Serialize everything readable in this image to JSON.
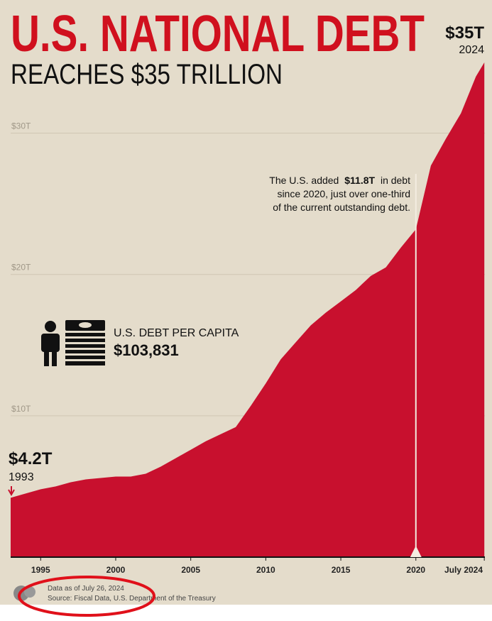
{
  "chart_data": {
    "type": "area",
    "title": "U.S. NATIONAL DEBT",
    "subtitle": "REACHES $35 TRILLION",
    "x": [
      1993,
      1994,
      1995,
      1996,
      1997,
      1998,
      1999,
      2000,
      2001,
      2002,
      2003,
      2004,
      2005,
      2006,
      2007,
      2008,
      2009,
      2010,
      2011,
      2012,
      2013,
      2014,
      2015,
      2016,
      2017,
      2018,
      2019,
      2020,
      2021,
      2022,
      2023,
      2024,
      2024.56
    ],
    "values": [
      4.2,
      4.5,
      4.8,
      5.0,
      5.3,
      5.5,
      5.6,
      5.7,
      5.7,
      5.9,
      6.4,
      7.0,
      7.6,
      8.2,
      8.7,
      9.2,
      10.7,
      12.3,
      14.0,
      15.2,
      16.4,
      17.3,
      18.1,
      18.9,
      19.9,
      20.5,
      21.9,
      23.2,
      27.7,
      29.6,
      31.4,
      34.0,
      35.0
    ],
    "color": "#c8102e",
    "xlim": [
      1993,
      2024.6
    ],
    "ylim": [
      0,
      35
    ],
    "xticks": [
      1995,
      2000,
      2005,
      2010,
      2015,
      2020,
      {
        "value": 2024.56,
        "label": "July 2024"
      }
    ],
    "yticks": [
      {
        "value": 10,
        "label": "$10T"
      },
      {
        "value": 20,
        "label": "$20T"
      },
      {
        "value": 30,
        "label": "$30T"
      }
    ],
    "grid": true,
    "start_label": {
      "value": "$4.2T",
      "year": "1993"
    },
    "end_label": {
      "value": "$35T",
      "year": "2024"
    },
    "annotation": {
      "before": "The U.S. added",
      "highlight": "$11.8T",
      "after": "in debt",
      "line2": "since 2020, just over one-third",
      "line3": "of the current outstanding debt."
    },
    "per_capita": {
      "label": "U.S. DEBT PER CAPITA",
      "value": "$103,831"
    },
    "footer": {
      "note": "Data as of July 26, 2024",
      "source": "Source: Fiscal Data, U.S. Department of the Treasury"
    }
  }
}
